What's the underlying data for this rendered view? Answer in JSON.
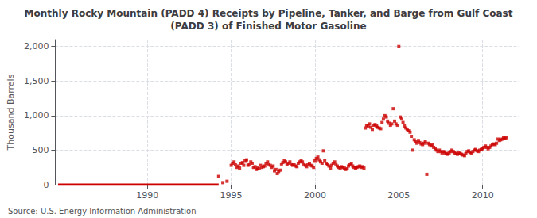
{
  "chart_data": {
    "type": "scatter",
    "title": "Monthly Rocky Mountain (PADD 4) Receipts by Pipeline, Tanker, and Barge from Gulf Coast\n(PADD 3) of Finished Motor Gasoline",
    "ylabel": "Thousand Barrels",
    "annotations": [
      "Source: U.S. Energy Information Administration"
    ],
    "xlim": [
      1984.5,
      2012.2
    ],
    "xticks": [
      1990,
      1995,
      2000,
      2005,
      2010
    ],
    "ylim": [
      0,
      2100
    ],
    "yticks": [
      0,
      500,
      {
        "value": 1000,
        "label": "1,000"
      },
      {
        "value": 1500,
        "label": "1,500"
      },
      {
        "value": 2000,
        "label": "2,000"
      }
    ],
    "grid": true,
    "series": [
      {
        "type": "line",
        "color": "#cc0000",
        "line_style": "solid",
        "x": [
          1984.67,
          1994.25
        ],
        "values": [
          0,
          0
        ]
      },
      {
        "type": "scatter",
        "color": "#cc0000",
        "marker": "square",
        "x": [
          1994.25,
          1994.5,
          1994.75,
          1995.0,
          1995.08,
          1995.17,
          1995.25,
          1995.33,
          1995.42,
          1995.5,
          1995.58,
          1995.67,
          1995.75,
          1995.83,
          1995.92,
          1996.0,
          1996.08,
          1996.17,
          1996.25,
          1996.33,
          1996.42,
          1996.5,
          1996.58,
          1996.67,
          1996.75,
          1996.83,
          1996.92,
          1997.0,
          1997.08,
          1997.17,
          1997.25,
          1997.33,
          1997.42,
          1997.5,
          1997.58,
          1997.67,
          1997.75,
          1997.83,
          1997.92,
          1998.0,
          1998.08,
          1998.17,
          1998.25,
          1998.33,
          1998.42,
          1998.5,
          1998.58,
          1998.67,
          1998.75,
          1998.83,
          1998.92,
          1999.0,
          1999.08,
          1999.17,
          1999.25,
          1999.33,
          1999.42,
          1999.5,
          1999.58,
          1999.67,
          1999.75,
          1999.83,
          1999.92,
          2000.0,
          2000.08,
          2000.17,
          2000.25,
          2000.33,
          2000.42,
          2000.5,
          2000.58,
          2000.67,
          2000.75,
          2000.83,
          2000.92,
          2001.0,
          2001.08,
          2001.17,
          2001.25,
          2001.33,
          2001.42,
          2001.5,
          2001.58,
          2001.67,
          2001.75,
          2001.83,
          2001.92,
          2002.0,
          2002.08,
          2002.17,
          2002.25,
          2002.33,
          2002.42,
          2002.5,
          2002.58,
          2002.67,
          2002.75,
          2002.83,
          2002.92,
          2003.0,
          2003.08,
          2003.17,
          2003.25,
          2003.33,
          2003.42,
          2003.5,
          2003.58,
          2003.67,
          2003.75,
          2003.83,
          2003.92,
          2004.0,
          2004.08,
          2004.17,
          2004.25,
          2004.33,
          2004.42,
          2004.5,
          2004.58,
          2004.67,
          2004.75,
          2004.83,
          2004.92,
          2005.0,
          2005.08,
          2005.17,
          2005.25,
          2005.33,
          2005.42,
          2005.5,
          2005.58,
          2005.67,
          2005.75,
          2005.83,
          2005.92,
          2006.0,
          2006.08,
          2006.17,
          2006.25,
          2006.33,
          2006.42,
          2006.5,
          2006.58,
          2006.67,
          2006.75,
          2006.83,
          2006.92,
          2007.0,
          2007.08,
          2007.17,
          2007.25,
          2007.33,
          2007.42,
          2007.5,
          2007.58,
          2007.67,
          2007.75,
          2007.83,
          2007.92,
          2008.0,
          2008.08,
          2008.17,
          2008.25,
          2008.33,
          2008.42,
          2008.5,
          2008.58,
          2008.67,
          2008.75,
          2008.83,
          2008.92,
          2009.0,
          2009.08,
          2009.17,
          2009.25,
          2009.33,
          2009.42,
          2009.5,
          2009.58,
          2009.67,
          2009.75,
          2009.83,
          2009.92,
          2010.0,
          2010.08,
          2010.17,
          2010.25,
          2010.33,
          2010.42,
          2010.5,
          2010.58,
          2010.67,
          2010.75,
          2010.83,
          2010.92,
          2011.0,
          2011.08,
          2011.17,
          2011.25,
          2011.33,
          2011.42
        ],
        "values": [
          120,
          30,
          50,
          280,
          310,
          330,
          290,
          250,
          270,
          240,
          310,
          320,
          280,
          350,
          360,
          280,
          300,
          330,
          310,
          250,
          260,
          220,
          240,
          230,
          280,
          250,
          260,
          270,
          310,
          330,
          300,
          280,
          250,
          270,
          200,
          220,
          160,
          190,
          210,
          300,
          320,
          350,
          330,
          290,
          310,
          330,
          300,
          280,
          290,
          270,
          260,
          310,
          330,
          350,
          330,
          300,
          280,
          260,
          290,
          310,
          280,
          270,
          250,
          350,
          380,
          400,
          360,
          330,
          310,
          490,
          350,
          310,
          290,
          270,
          240,
          280,
          310,
          330,
          300,
          270,
          250,
          240,
          260,
          250,
          240,
          220,
          230,
          270,
          290,
          310,
          270,
          250,
          240,
          250,
          260,
          270,
          250,
          260,
          240,
          820,
          860,
          850,
          880,
          830,
          800,
          860,
          870,
          850,
          830,
          820,
          810,
          900,
          950,
          1000,
          980,
          920,
          890,
          860,
          880,
          1100,
          920,
          880,
          860,
          2000,
          980,
          950,
          900,
          850,
          820,
          800,
          780,
          760,
          700,
          500,
          650,
          620,
          600,
          640,
          610,
          590,
          580,
          600,
          620,
          150,
          600,
          580,
          560,
          580,
          540,
          520,
          500,
          480,
          500,
          480,
          460,
          480,
          460,
          450,
          440,
          460,
          480,
          500,
          480,
          460,
          450,
          440,
          460,
          450,
          440,
          430,
          420,
          450,
          480,
          490,
          470,
          450,
          480,
          500,
          510,
          490,
          480,
          500,
          510,
          520,
          540,
          560,
          540,
          520,
          540,
          560,
          580,
          590,
          580,
          600,
          660,
          640,
          650,
          660,
          680,
          670,
          680
        ]
      }
    ]
  }
}
